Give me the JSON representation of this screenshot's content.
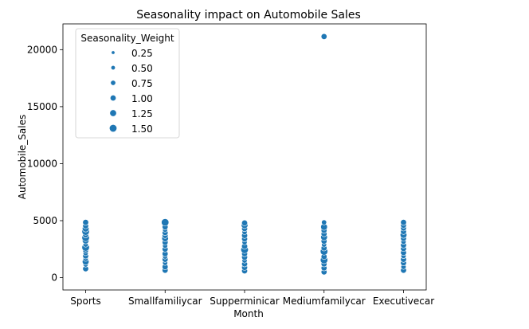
{
  "chart_data": {
    "type": "scatter",
    "title": "Seasonality impact on Automobile Sales",
    "xlabel": "Month",
    "ylabel": "Automobile_Sales",
    "categories": [
      "Sports",
      "Smallfamiliycar",
      "Supperminicar",
      "Mediumfamilycar",
      "Executivecar"
    ],
    "ylim": [
      -1080,
      22260
    ],
    "yticks": [
      0,
      5000,
      10000,
      15000,
      20000
    ],
    "grid": false,
    "marker_color": "#1f77b4",
    "legend": {
      "title": "Seasonality_Weight",
      "placement": "upper-left",
      "entries": [
        {
          "label": "0.25",
          "weight": 0.25
        },
        {
          "label": "0.50",
          "weight": 0.5
        },
        {
          "label": "0.75",
          "weight": 0.75
        },
        {
          "label": "1.00",
          "weight": 1.0
        },
        {
          "label": "1.25",
          "weight": 1.25
        },
        {
          "label": "1.50",
          "weight": 1.5
        }
      ]
    },
    "points": [
      {
        "category": "Sports",
        "y": 780,
        "weight": 1.0
      },
      {
        "category": "Sports",
        "y": 1150,
        "weight": 0.75
      },
      {
        "category": "Sports",
        "y": 1400,
        "weight": 1.25
      },
      {
        "category": "Sports",
        "y": 1650,
        "weight": 0.75
      },
      {
        "category": "Sports",
        "y": 1900,
        "weight": 1.0
      },
      {
        "category": "Sports",
        "y": 2150,
        "weight": 0.75
      },
      {
        "category": "Sports",
        "y": 2400,
        "weight": 1.0
      },
      {
        "category": "Sports",
        "y": 2650,
        "weight": 1.5
      },
      {
        "category": "Sports",
        "y": 2900,
        "weight": 0.75
      },
      {
        "category": "Sports",
        "y": 3250,
        "weight": 1.25
      },
      {
        "category": "Sports",
        "y": 3500,
        "weight": 1.5
      },
      {
        "category": "Sports",
        "y": 3750,
        "weight": 1.0
      },
      {
        "category": "Sports",
        "y": 4050,
        "weight": 1.5
      },
      {
        "category": "Sports",
        "y": 4300,
        "weight": 1.25
      },
      {
        "category": "Sports",
        "y": 4550,
        "weight": 1.0
      },
      {
        "category": "Sports",
        "y": 4850,
        "weight": 1.0
      },
      {
        "category": "Smallfamiliycar",
        "y": 650,
        "weight": 1.0
      },
      {
        "category": "Smallfamiliycar",
        "y": 950,
        "weight": 1.0
      },
      {
        "category": "Smallfamiliycar",
        "y": 1300,
        "weight": 0.75
      },
      {
        "category": "Smallfamiliycar",
        "y": 1600,
        "weight": 1.0
      },
      {
        "category": "Smallfamiliycar",
        "y": 1850,
        "weight": 0.75
      },
      {
        "category": "Smallfamiliycar",
        "y": 2100,
        "weight": 1.0
      },
      {
        "category": "Smallfamiliycar",
        "y": 2500,
        "weight": 1.0
      },
      {
        "category": "Smallfamiliycar",
        "y": 2800,
        "weight": 0.75
      },
      {
        "category": "Smallfamiliycar",
        "y": 3100,
        "weight": 1.0
      },
      {
        "category": "Smallfamiliycar",
        "y": 3450,
        "weight": 1.25
      },
      {
        "category": "Smallfamiliycar",
        "y": 3700,
        "weight": 1.0
      },
      {
        "category": "Smallfamiliycar",
        "y": 3950,
        "weight": 1.0
      },
      {
        "category": "Smallfamiliycar",
        "y": 4200,
        "weight": 0.75
      },
      {
        "category": "Smallfamiliycar",
        "y": 4450,
        "weight": 1.0
      },
      {
        "category": "Smallfamiliycar",
        "y": 4850,
        "weight": 1.5
      },
      {
        "category": "Supperminicar",
        "y": 600,
        "weight": 1.0
      },
      {
        "category": "Supperminicar",
        "y": 900,
        "weight": 1.0
      },
      {
        "category": "Supperminicar",
        "y": 1200,
        "weight": 1.0
      },
      {
        "category": "Supperminicar",
        "y": 1500,
        "weight": 0.75
      },
      {
        "category": "Supperminicar",
        "y": 1800,
        "weight": 1.0
      },
      {
        "category": "Supperminicar",
        "y": 2100,
        "weight": 1.0
      },
      {
        "category": "Supperminicar",
        "y": 2450,
        "weight": 1.5
      },
      {
        "category": "Supperminicar",
        "y": 2750,
        "weight": 1.0
      },
      {
        "category": "Supperminicar",
        "y": 3100,
        "weight": 0.75
      },
      {
        "category": "Supperminicar",
        "y": 3400,
        "weight": 1.0
      },
      {
        "category": "Supperminicar",
        "y": 3700,
        "weight": 1.0
      },
      {
        "category": "Supperminicar",
        "y": 4000,
        "weight": 0.75
      },
      {
        "category": "Supperminicar",
        "y": 4300,
        "weight": 1.0
      },
      {
        "category": "Supperminicar",
        "y": 4600,
        "weight": 1.25
      },
      {
        "category": "Supperminicar",
        "y": 4800,
        "weight": 1.0
      },
      {
        "category": "Mediumfamilycar",
        "y": 500,
        "weight": 1.0
      },
      {
        "category": "Mediumfamilycar",
        "y": 850,
        "weight": 1.0
      },
      {
        "category": "Mediumfamilycar",
        "y": 1200,
        "weight": 1.0
      },
      {
        "category": "Mediumfamilycar",
        "y": 1550,
        "weight": 1.5
      },
      {
        "category": "Mediumfamilycar",
        "y": 1850,
        "weight": 1.0
      },
      {
        "category": "Mediumfamilycar",
        "y": 2300,
        "weight": 1.5
      },
      {
        "category": "Mediumfamilycar",
        "y": 2600,
        "weight": 1.0
      },
      {
        "category": "Mediumfamilycar",
        "y": 2900,
        "weight": 0.75
      },
      {
        "category": "Mediumfamilycar",
        "y": 3200,
        "weight": 1.0
      },
      {
        "category": "Mediumfamilycar",
        "y": 3550,
        "weight": 1.25
      },
      {
        "category": "Mediumfamilycar",
        "y": 3850,
        "weight": 1.0
      },
      {
        "category": "Mediumfamilycar",
        "y": 4150,
        "weight": 1.0
      },
      {
        "category": "Mediumfamilycar",
        "y": 4450,
        "weight": 1.25
      },
      {
        "category": "Mediumfamilycar",
        "y": 4850,
        "weight": 0.75
      },
      {
        "category": "Mediumfamilycar",
        "y": 21150,
        "weight": 1.0
      },
      {
        "category": "Executivecar",
        "y": 650,
        "weight": 1.0
      },
      {
        "category": "Executivecar",
        "y": 950,
        "weight": 0.75
      },
      {
        "category": "Executivecar",
        "y": 1300,
        "weight": 1.0
      },
      {
        "category": "Executivecar",
        "y": 1600,
        "weight": 1.0
      },
      {
        "category": "Executivecar",
        "y": 1900,
        "weight": 0.75
      },
      {
        "category": "Executivecar",
        "y": 2200,
        "weight": 1.0
      },
      {
        "category": "Executivecar",
        "y": 2550,
        "weight": 1.0
      },
      {
        "category": "Executivecar",
        "y": 2850,
        "weight": 1.0
      },
      {
        "category": "Executivecar",
        "y": 3150,
        "weight": 0.75
      },
      {
        "category": "Executivecar",
        "y": 3450,
        "weight": 1.0
      },
      {
        "category": "Executivecar",
        "y": 3750,
        "weight": 1.25
      },
      {
        "category": "Executivecar",
        "y": 4050,
        "weight": 1.0
      },
      {
        "category": "Executivecar",
        "y": 4350,
        "weight": 1.0
      },
      {
        "category": "Executivecar",
        "y": 4600,
        "weight": 1.0
      },
      {
        "category": "Executivecar",
        "y": 4850,
        "weight": 1.0
      }
    ]
  }
}
